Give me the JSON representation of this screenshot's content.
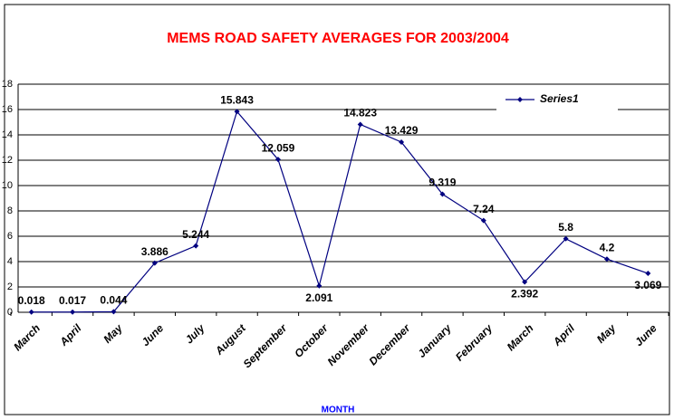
{
  "chart_data": {
    "type": "line",
    "title": "MEMS ROAD SAFETY AVERAGES FOR 2003/2004",
    "x_label": "MONTH",
    "categories": [
      "March",
      "April",
      "May",
      "June",
      "July",
      "August",
      "September",
      "October",
      "November",
      "December",
      "January",
      "February",
      "March",
      "April",
      "May",
      "June"
    ],
    "series": [
      {
        "name": "Series1",
        "color": "#000080",
        "values": [
          0.018,
          0.017,
          0.044,
          3.886,
          5.244,
          15.843,
          12.059,
          2.091,
          14.823,
          13.429,
          9.319,
          7.24,
          2.392,
          5.8,
          4.2,
          3.069
        ]
      }
    ],
    "ylim": [
      0,
      18
    ],
    "yticks": [
      0,
      2,
      4,
      6,
      8,
      10,
      12,
      14,
      16,
      18
    ],
    "grid": true,
    "legend": "upper right"
  }
}
